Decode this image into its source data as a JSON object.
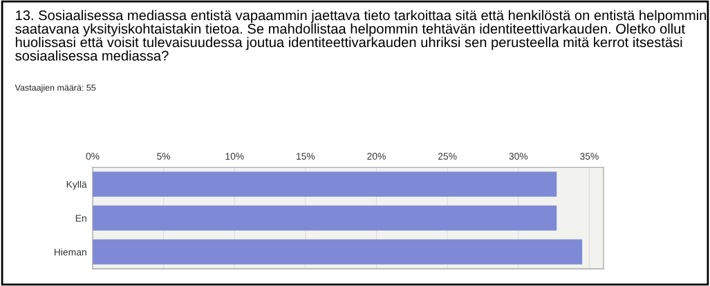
{
  "chart_data": {
    "type": "bar",
    "orientation": "horizontal",
    "title": "13. Sosiaalisessa mediassa entistä vapaammin jaettava tieto tarkoittaa sitä että henkilöstä on entistä helpommin saatavana yksityiskohtaistakin tietoa. Se mahdollistaa helpommin tehtävän identiteettivarkauden. Oletko ollut huolissasi että voisit tulevaisuudessa joutua identiteettivarkauden uhriksi sen perusteella mitä kerrot itsestäsi sosiaalisessa mediassa?",
    "subtitle": "Vastaajien määrä: 55",
    "categories": [
      "Kyllä",
      "En",
      "Hieman"
    ],
    "values": [
      32.7,
      32.7,
      34.5
    ],
    "color": "#7f8ad6",
    "xlim": [
      0,
      36
    ],
    "xticks": [
      {
        "value": 0,
        "label": "0%"
      },
      {
        "value": 5,
        "label": "5%"
      },
      {
        "value": 10,
        "label": "10%"
      },
      {
        "value": 15,
        "label": "15%"
      },
      {
        "value": 20,
        "label": "20%"
      },
      {
        "value": 25,
        "label": "25%"
      },
      {
        "value": 30,
        "label": "30%"
      },
      {
        "value": 35,
        "label": "35%"
      }
    ],
    "grid": "x"
  }
}
